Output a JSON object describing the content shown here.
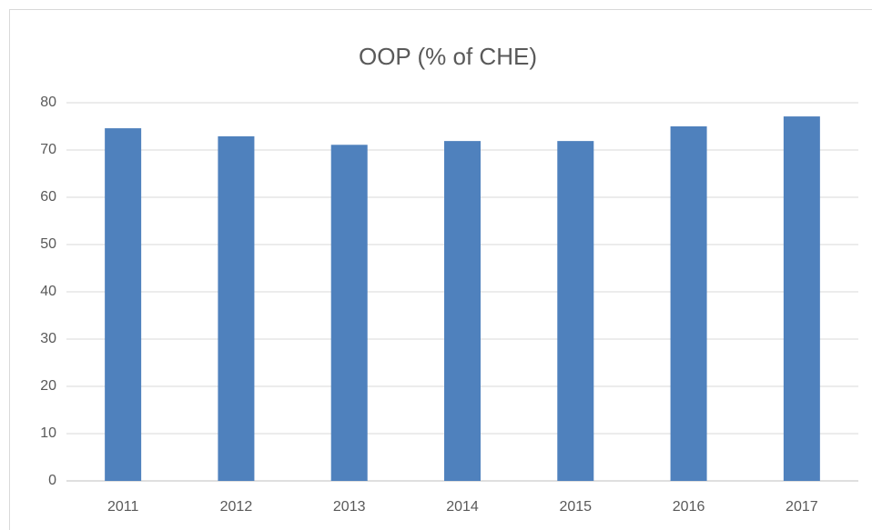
{
  "chart_data": {
    "type": "bar",
    "title": "OOP (% of CHE)",
    "categories": [
      "2011",
      "2012",
      "2013",
      "2014",
      "2015",
      "2016",
      "2017"
    ],
    "values": [
      74.6,
      72.9,
      71.1,
      71.9,
      71.9,
      75.0,
      77.1
    ],
    "color": "#4f81bd",
    "ylim": [
      0,
      80
    ],
    "yticks": [
      0,
      10,
      20,
      30,
      40,
      50,
      60,
      70,
      80
    ],
    "grid": true
  }
}
